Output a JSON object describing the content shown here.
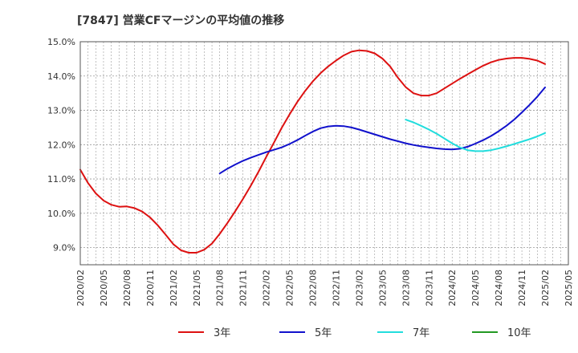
{
  "chart_data": {
    "type": "line",
    "title": "[7847]  営業CFマージンの平均値の推移",
    "xlabel": "",
    "ylabel": "",
    "ylim": [
      8.5,
      15.0
    ],
    "yticks": [
      9.0,
      10.0,
      11.0,
      12.0,
      13.0,
      14.0,
      15.0
    ],
    "ytick_labels": [
      "9.0%",
      "10.0%",
      "11.0%",
      "12.0%",
      "13.0%",
      "14.0%",
      "15.0%"
    ],
    "xlim": [
      "2020/02",
      "2025/05"
    ],
    "xtick_labels": [
      "2020/02",
      "2020/05",
      "2020/08",
      "2020/11",
      "2021/02",
      "2021/05",
      "2021/08",
      "2021/11",
      "2022/02",
      "2022/05",
      "2022/08",
      "2022/11",
      "2023/02",
      "2023/05",
      "2023/08",
      "2023/11",
      "2024/02",
      "2024/05",
      "2024/08",
      "2024/11",
      "2025/02",
      "2025/05"
    ],
    "grid": true,
    "legend_position": "bottom",
    "series": [
      {
        "name": "3年",
        "color": "#dd1111",
        "x": [
          "2020/02",
          "2020/03",
          "2020/04",
          "2020/05",
          "2020/06",
          "2020/07",
          "2020/08",
          "2020/09",
          "2020/10",
          "2020/11",
          "2020/12",
          "2021/01",
          "2021/02",
          "2021/03",
          "2021/04",
          "2021/05",
          "2021/06",
          "2021/07",
          "2021/08",
          "2021/09",
          "2021/10",
          "2021/11",
          "2021/12",
          "2022/01",
          "2022/02",
          "2022/03",
          "2022/04",
          "2022/05",
          "2022/06",
          "2022/07",
          "2022/08",
          "2022/09",
          "2022/10",
          "2022/11",
          "2022/12",
          "2023/01",
          "2023/02",
          "2023/03",
          "2023/04",
          "2023/05",
          "2023/06",
          "2023/07",
          "2023/08",
          "2023/09",
          "2023/10",
          "2023/11",
          "2023/12",
          "2024/01",
          "2024/02",
          "2024/03",
          "2024/04",
          "2024/05",
          "2024/06",
          "2024/07",
          "2024/08",
          "2024/09",
          "2024/10",
          "2024/11",
          "2024/12",
          "2025/01",
          "2025/02"
        ],
        "values": [
          11.27,
          10.88,
          10.58,
          10.37,
          10.25,
          10.19,
          10.2,
          10.15,
          10.05,
          9.88,
          9.65,
          9.38,
          9.1,
          8.92,
          8.85,
          8.85,
          8.94,
          9.12,
          9.4,
          9.72,
          10.06,
          10.42,
          10.8,
          11.21,
          11.64,
          12.06,
          12.49,
          12.88,
          13.24,
          13.56,
          13.84,
          14.08,
          14.28,
          14.45,
          14.6,
          14.71,
          14.75,
          14.73,
          14.66,
          14.51,
          14.28,
          13.95,
          13.68,
          13.5,
          13.43,
          13.43,
          13.5,
          13.64,
          13.78,
          13.92,
          14.05,
          14.18,
          14.3,
          14.4,
          14.47,
          14.51,
          14.53,
          14.53,
          14.5,
          14.45,
          14.35
        ]
      },
      {
        "name": "5年",
        "color": "#1111cc",
        "x": [
          "2021/08",
          "2021/09",
          "2021/10",
          "2021/11",
          "2021/12",
          "2022/01",
          "2022/02",
          "2022/03",
          "2022/04",
          "2022/05",
          "2022/06",
          "2022/07",
          "2022/08",
          "2022/09",
          "2022/10",
          "2022/11",
          "2022/12",
          "2023/01",
          "2023/02",
          "2023/03",
          "2023/04",
          "2023/05",
          "2023/06",
          "2023/07",
          "2023/08",
          "2023/09",
          "2023/10",
          "2023/11",
          "2023/12",
          "2024/01",
          "2024/02",
          "2024/03",
          "2024/04",
          "2024/05",
          "2024/06",
          "2024/07",
          "2024/08",
          "2024/09",
          "2024/10",
          "2024/11",
          "2024/12",
          "2025/01",
          "2025/02"
        ],
        "values": [
          11.16,
          11.3,
          11.42,
          11.53,
          11.62,
          11.7,
          11.78,
          11.85,
          11.92,
          12.02,
          12.13,
          12.26,
          12.38,
          12.48,
          12.53,
          12.55,
          12.54,
          12.5,
          12.44,
          12.37,
          12.3,
          12.23,
          12.16,
          12.1,
          12.04,
          11.99,
          11.95,
          11.92,
          11.89,
          11.87,
          11.86,
          11.88,
          11.94,
          12.03,
          12.13,
          12.25,
          12.39,
          12.55,
          12.73,
          12.94,
          13.16,
          13.4,
          13.67
        ]
      },
      {
        "name": "7年",
        "color": "#22dddd",
        "x": [
          "2023/08",
          "2023/09",
          "2023/10",
          "2023/11",
          "2023/12",
          "2024/01",
          "2024/02",
          "2024/03",
          "2024/04",
          "2024/05",
          "2024/06",
          "2024/07",
          "2024/08",
          "2024/09",
          "2024/10",
          "2024/11",
          "2024/12",
          "2025/01",
          "2025/02"
        ],
        "values": [
          12.73,
          12.65,
          12.55,
          12.44,
          12.32,
          12.18,
          12.04,
          11.92,
          11.84,
          11.81,
          11.81,
          11.84,
          11.89,
          11.95,
          12.02,
          12.09,
          12.16,
          12.24,
          12.34
        ]
      },
      {
        "name": "10年",
        "color": "#229922",
        "x": [],
        "values": []
      }
    ]
  }
}
